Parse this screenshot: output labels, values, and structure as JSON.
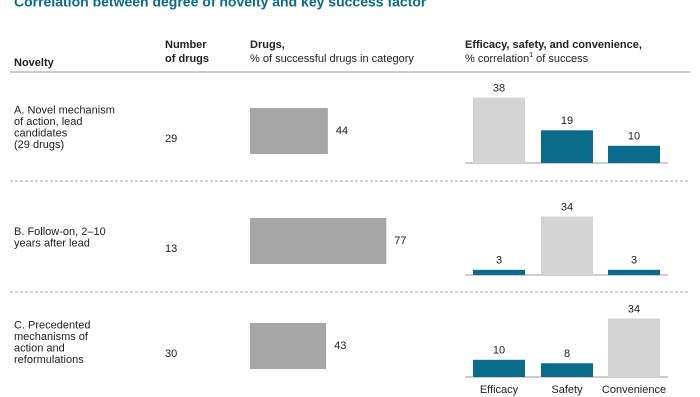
{
  "title": "Correlation between degree of novelty and key success factor",
  "headers": {
    "novelty": "Novelty",
    "number": [
      "Number",
      "of drugs"
    ],
    "drugs": "Drugs,",
    "drugs_sub": "% of successful drugs in category",
    "factors": "Efficacy, safety, and convenience,",
    "factors_sub_a": "% correlation",
    "factors_sub_sup": "1",
    "factors_sub_b": " of success"
  },
  "factor_names": [
    "Efficacy",
    "Safety",
    "Convenience"
  ],
  "rows": [
    {
      "label": [
        "A. Novel mechanism",
        "of action, lead",
        "candidates",
        "(29 drugs)"
      ],
      "number": 29,
      "drugs_pct": 44,
      "correlation": [
        38,
        19,
        10
      ],
      "colors": [
        "#d4d4d4",
        "#0a6b8a",
        "#0a6b8a"
      ]
    },
    {
      "label": [
        "B. Follow-on, 2–10",
        "years after lead"
      ],
      "number": 13,
      "drugs_pct": 77,
      "correlation": [
        3,
        34,
        3
      ],
      "colors": [
        "#0a6b8a",
        "#d4d4d4",
        "#0a6b8a"
      ]
    },
    {
      "label": [
        "C. Precedented",
        "mechanisms of",
        "action and",
        "reformulations"
      ],
      "number": 30,
      "drugs_pct": 43,
      "correlation": [
        10,
        8,
        34
      ],
      "colors": [
        "#0a6b8a",
        "#0a6b8a",
        "#d4d4d4"
      ]
    }
  ],
  "drugs_color": "#a6a6a6"
}
